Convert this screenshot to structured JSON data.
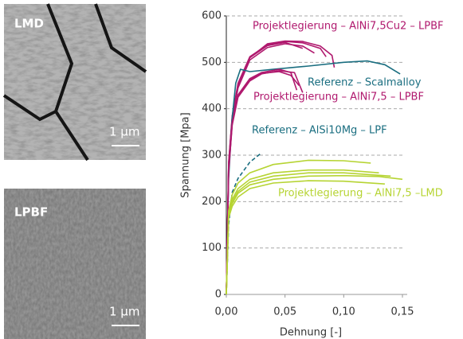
{
  "images": [
    {
      "label": "LMD",
      "scale_bar": "1 µm"
    },
    {
      "label": "LPBF",
      "scale_bar": "1 µm"
    }
  ],
  "chart_data": {
    "type": "line",
    "xlabel": "Dehnung [-]",
    "ylabel": "Spannung [Mpa]",
    "xlim": [
      0,
      0.15
    ],
    "ylim": [
      0,
      600
    ],
    "xticks": [
      {
        "value": 0,
        "label": "0,00"
      },
      {
        "value": 0.05,
        "label": "0,05"
      },
      {
        "value": 0.1,
        "label": "0,10"
      },
      {
        "value": 0.15,
        "label": "0,15"
      }
    ],
    "yticks": [
      0,
      100,
      200,
      300,
      400,
      500,
      600
    ],
    "grid": true,
    "series": [
      {
        "name": "Projektlegierung – AlNi7,5Cu2 – LPBF",
        "color": "#b0196e",
        "dashed": false,
        "curves": [
          {
            "x": [
              0,
              0.002,
              0.005,
              0.01,
              0.02,
              0.035,
              0.05,
              0.065
            ],
            "values": [
              0,
              280,
              380,
              450,
              510,
              536,
              543,
              530
            ]
          },
          {
            "x": [
              0,
              0.002,
              0.005,
              0.01,
              0.02,
              0.035,
              0.05,
              0.065,
              0.075
            ],
            "values": [
              0,
              275,
              375,
              445,
              505,
              532,
              540,
              535,
              520
            ]
          },
          {
            "x": [
              0,
              0.002,
              0.005,
              0.01,
              0.02,
              0.035,
              0.05,
              0.065,
              0.08,
              0.085
            ],
            "values": [
              0,
              285,
              385,
              455,
              512,
              538,
              545,
              542,
              530,
              512
            ]
          },
          {
            "x": [
              0,
              0.002,
              0.005,
              0.01,
              0.02,
              0.035,
              0.05,
              0.065,
              0.08,
              0.09,
              0.092
            ],
            "values": [
              0,
              282,
              382,
              452,
              510,
              540,
              546,
              545,
              535,
              515,
              489
            ]
          }
        ]
      },
      {
        "name": "Referenz – Scalmalloy",
        "color": "#1a6e80",
        "dashed": false,
        "curves": [
          {
            "x": [
              0,
              0.002,
              0.005,
              0.008,
              0.012,
              0.02,
              0.04,
              0.07,
              0.1,
              0.12,
              0.135,
              0.148
            ],
            "values": [
              0,
              250,
              380,
              455,
              485,
              480,
              485,
              492,
              500,
              503,
              495,
              475
            ]
          }
        ]
      },
      {
        "name": "Projektlegierung – AlNi7,5 – LPBF",
        "color": "#b0196e",
        "dashed": false,
        "curves": [
          {
            "x": [
              0,
              0.002,
              0.005,
              0.01,
              0.02,
              0.03,
              0.045,
              0.055,
              0.06
            ],
            "values": [
              0,
              270,
              370,
              430,
              465,
              478,
              485,
              478,
              440
            ]
          },
          {
            "x": [
              0,
              0.002,
              0.005,
              0.01,
              0.02,
              0.03,
              0.045,
              0.058,
              0.065
            ],
            "values": [
              0,
              265,
              365,
              425,
              460,
              475,
              482,
              478,
              435
            ]
          },
          {
            "x": [
              0,
              0.002,
              0.005,
              0.01,
              0.02,
              0.03,
              0.045,
              0.055,
              0.062
            ],
            "values": [
              0,
              268,
              368,
              428,
              462,
              476,
              480,
              472,
              450
            ]
          }
        ]
      },
      {
        "name": "Referenz – AlSi10Mg – LPF",
        "color": "#1a6e80",
        "dashed": true,
        "curves": [
          {
            "x": [
              0,
              0.002,
              0.005,
              0.01,
              0.02,
              0.03
            ],
            "values": [
              0,
              150,
              220,
              250,
              285,
              305
            ]
          }
        ]
      },
      {
        "name": "Projektlegierung – AlNi7,5 –LMD",
        "color": "#b6d433",
        "dashed": false,
        "curves": [
          {
            "x": [
              0,
              0.002,
              0.005,
              0.01,
              0.02,
              0.04,
              0.07,
              0.1,
              0.123
            ],
            "values": [
              0,
              180,
              215,
              240,
              262,
              280,
              289,
              288,
              283
            ]
          },
          {
            "x": [
              0,
              0.002,
              0.005,
              0.01,
              0.02,
              0.04,
              0.07,
              0.1,
              0.13
            ],
            "values": [
              0,
              175,
              205,
              228,
              248,
              262,
              268,
              268,
              262
            ]
          },
          {
            "x": [
              0,
              0.002,
              0.005,
              0.01,
              0.02,
              0.04,
              0.07,
              0.1,
              0.14
            ],
            "values": [
              0,
              170,
              200,
              222,
              242,
              255,
              262,
              262,
              255
            ]
          },
          {
            "x": [
              0,
              0.002,
              0.005,
              0.01,
              0.02,
              0.04,
              0.07,
              0.1,
              0.13,
              0.15
            ],
            "values": [
              0,
              168,
              196,
              218,
              236,
              248,
              255,
              256,
              254,
              248
            ]
          },
          {
            "x": [
              0,
              0.002,
              0.005,
              0.01,
              0.02,
              0.04,
              0.07,
              0.1,
              0.135
            ],
            "values": [
              0,
              165,
              190,
              210,
              228,
              240,
              245,
              244,
              238
            ]
          }
        ]
      }
    ]
  }
}
